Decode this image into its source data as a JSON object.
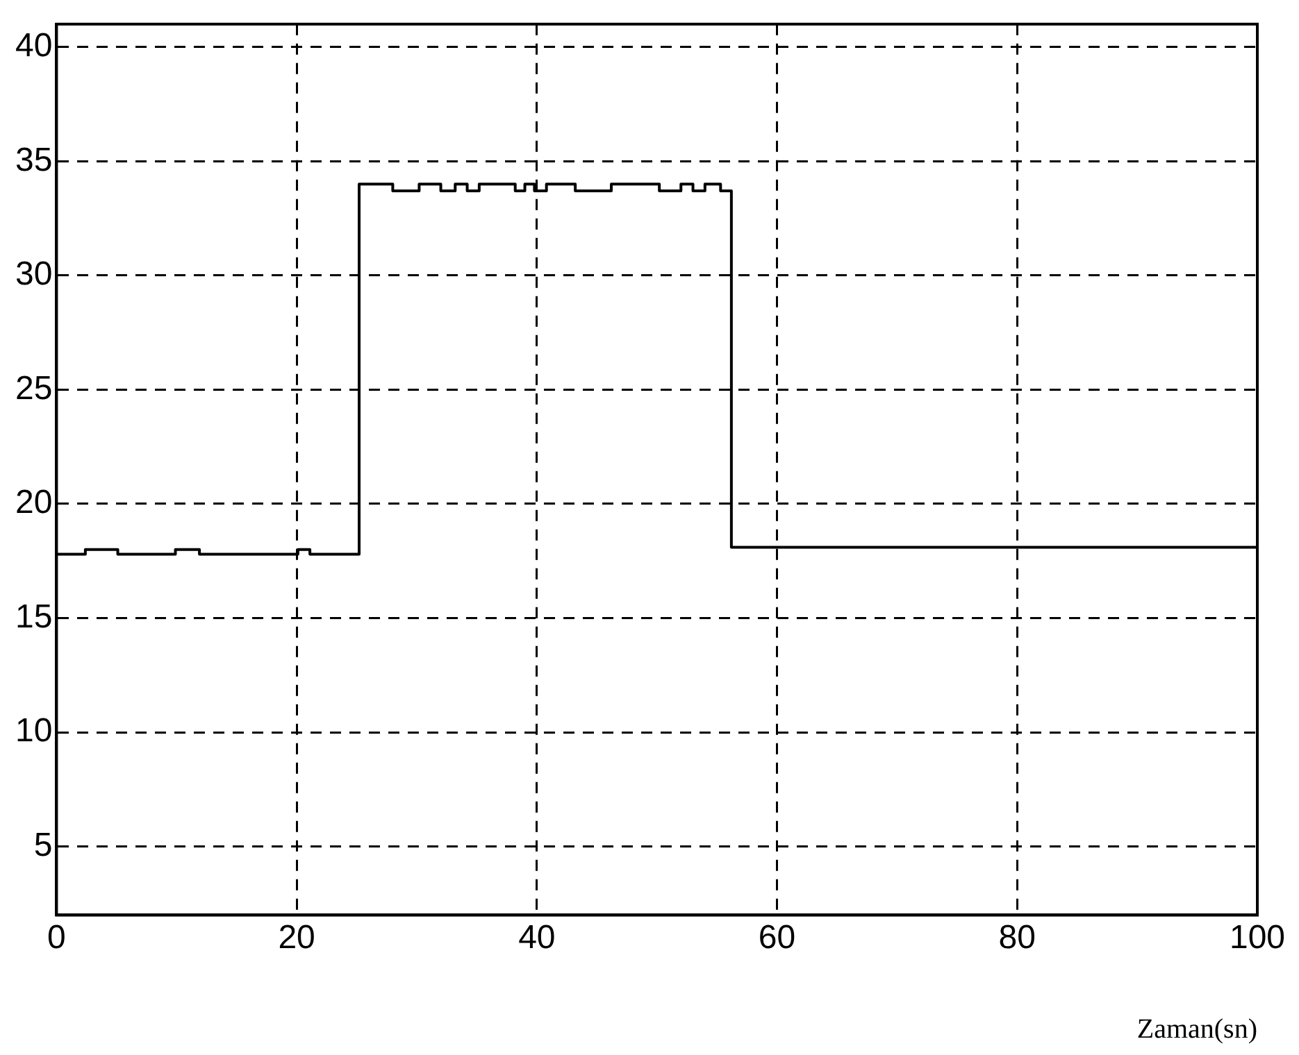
{
  "chart_data": {
    "type": "step",
    "xlabel": "Zaman(sn)",
    "x": [
      0,
      2.4,
      5.1,
      9.9,
      11.9,
      20.1,
      21.1,
      25.2,
      28.0,
      30.2,
      32.0,
      33.2,
      34.2,
      35.2,
      38.2,
      39.0,
      39.8,
      40.8,
      43.2,
      46.2,
      50.2,
      52.0,
      53.0,
      54.0,
      55.3,
      56.2,
      100
    ],
    "values": [
      17.8,
      18.0,
      17.8,
      18.0,
      17.8,
      18.0,
      17.8,
      34.0,
      33.7,
      34.0,
      33.7,
      34.0,
      33.7,
      34.0,
      33.7,
      34.0,
      33.7,
      34.0,
      33.7,
      34.0,
      33.7,
      34.0,
      33.7,
      34.0,
      33.7,
      18.1,
      18.1
    ],
    "color": "#000000",
    "xlim": [
      0,
      100
    ],
    "xticks": [
      0,
      20,
      40,
      60,
      80,
      100
    ],
    "ylim": [
      2,
      41
    ],
    "yticks": [
      5,
      10,
      15,
      20,
      25,
      30,
      35,
      40
    ],
    "grid": true,
    "legend": false,
    "line_style": "solid",
    "marker": "none"
  }
}
